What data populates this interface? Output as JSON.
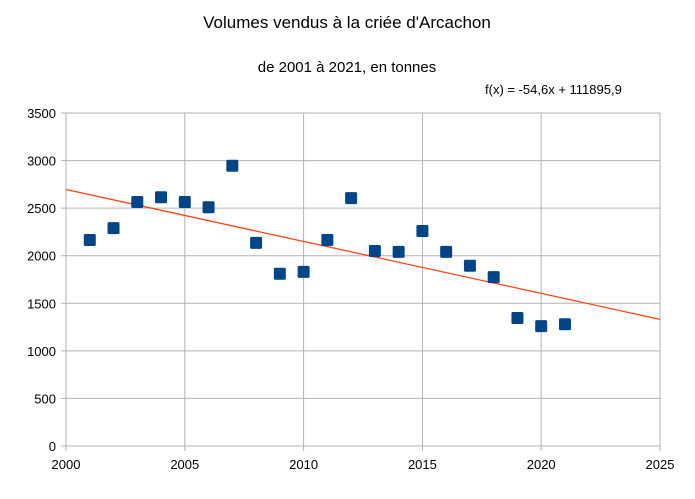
{
  "chart_data": {
    "type": "scatter",
    "title": "Volumes vendus à la criée d'Arcachon",
    "subtitle": "de 2001 à 2021, en tonnes",
    "xlabel": "",
    "ylabel": "",
    "xlim": [
      2000,
      2025
    ],
    "ylim": [
      0,
      3500
    ],
    "x_ticks": [
      2000,
      2005,
      2010,
      2015,
      2020,
      2025
    ],
    "y_ticks": [
      0,
      500,
      1000,
      1500,
      2000,
      2500,
      3000,
      3500
    ],
    "grid": true,
    "legend": "none",
    "series": [
      {
        "name": "Volumes",
        "color": "#004586",
        "marker": "square",
        "x": [
          2001,
          2002,
          2003,
          2004,
          2005,
          2006,
          2007,
          2008,
          2009,
          2010,
          2011,
          2012,
          2013,
          2014,
          2015,
          2016,
          2017,
          2018,
          2019,
          2020,
          2021
        ],
        "y": [
          2165,
          2290,
          2565,
          2615,
          2565,
          2510,
          2945,
          2135,
          1810,
          1830,
          2165,
          2605,
          2050,
          2040,
          2260,
          2040,
          1895,
          1775,
          1345,
          1260,
          1280
        ]
      }
    ],
    "trendline": {
      "type": "linear",
      "slope": -54.6,
      "intercept": 111895.9,
      "color": "#ff420e",
      "equation_label": "f(x) = -54,6x + 111895,9"
    }
  }
}
